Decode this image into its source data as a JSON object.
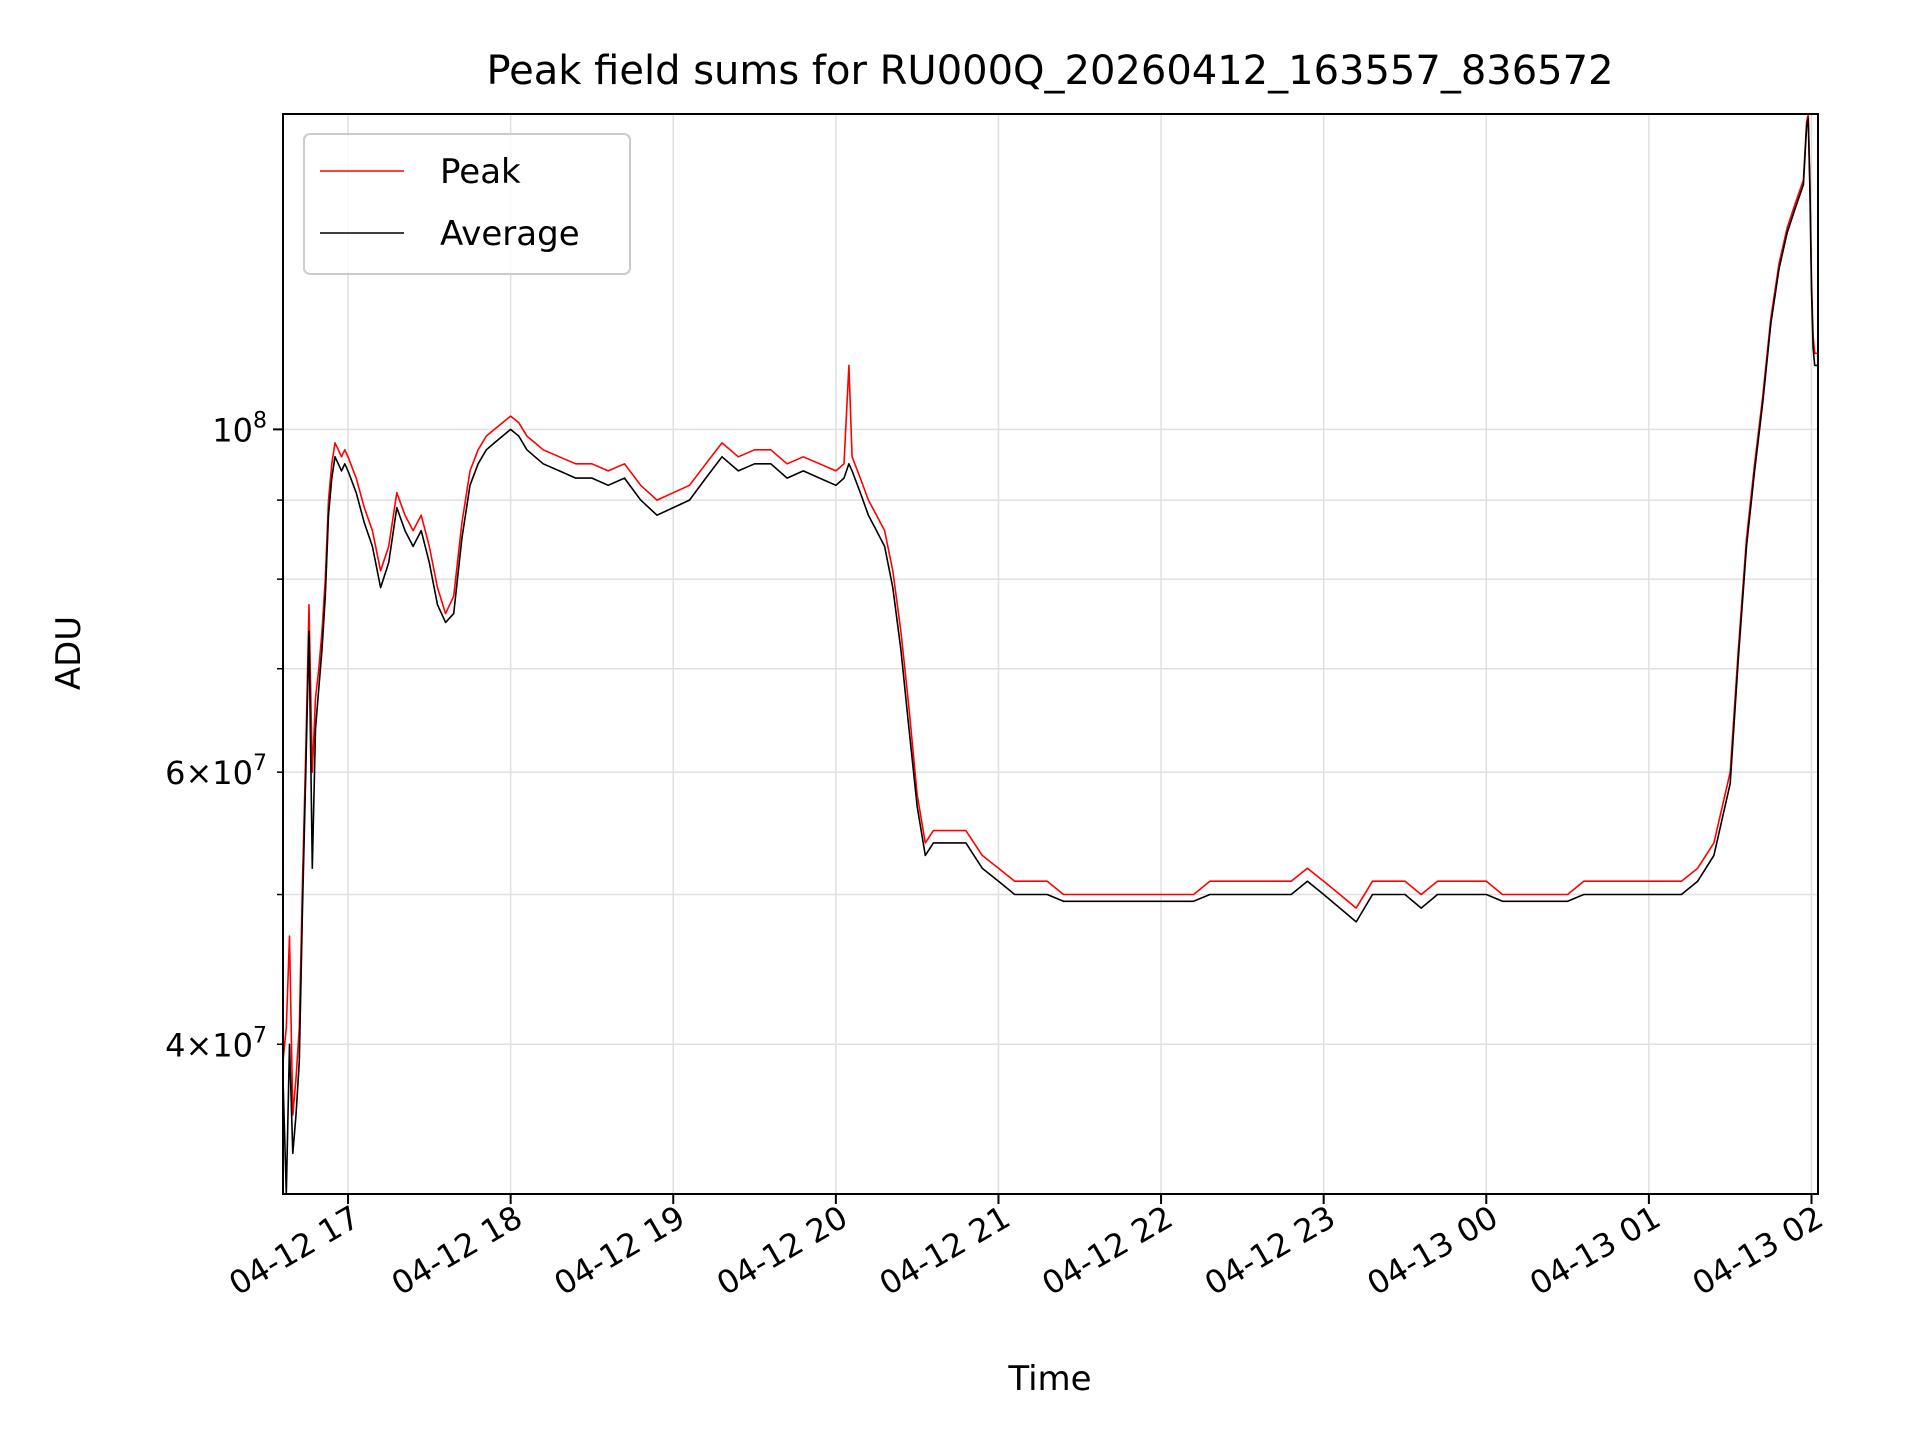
{
  "chart_data": {
    "type": "line",
    "title": "Peak field sums for RU000Q_20260412_163557_836572",
    "xlabel": "Time",
    "ylabel": "ADU",
    "y_scale": "log",
    "x_unit": "hours since 04-12 00:00",
    "xlim": [
      16.6,
      26.04
    ],
    "ylim": [
      32000000.0,
      160000000.0
    ],
    "grid": true,
    "legend_position": "top-left",
    "x_ticks": [
      {
        "value": 17,
        "label": "04-12 17"
      },
      {
        "value": 18,
        "label": "04-12 18"
      },
      {
        "value": 19,
        "label": "04-12 19"
      },
      {
        "value": 20,
        "label": "04-12 20"
      },
      {
        "value": 21,
        "label": "04-12 21"
      },
      {
        "value": 22,
        "label": "04-12 22"
      },
      {
        "value": 23,
        "label": "04-12 23"
      },
      {
        "value": 24,
        "label": "04-13 00"
      },
      {
        "value": 25,
        "label": "04-13 01"
      },
      {
        "value": 26,
        "label": "04-13 02"
      }
    ],
    "y_major_ticks": [
      {
        "value": 100000000.0,
        "base": "10",
        "exp": "8"
      }
    ],
    "y_minor_ticks": [
      {
        "value": 40000000.0,
        "mant": "4",
        "exp": "7",
        "labeled": true
      },
      {
        "value": 50000000.0,
        "labeled": false
      },
      {
        "value": 60000000.0,
        "mant": "6",
        "exp": "7",
        "labeled": true
      },
      {
        "value": 70000000.0,
        "labeled": false
      },
      {
        "value": 80000000.0,
        "labeled": false
      },
      {
        "value": 90000000.0,
        "labeled": false
      },
      {
        "value": 200000000.0,
        "labeled": false
      }
    ],
    "series": [
      {
        "name": "Peak",
        "color": "#ff0000",
        "x": [
          16.6,
          16.62,
          16.64,
          16.66,
          16.68,
          16.7,
          16.72,
          16.74,
          16.76,
          16.78,
          16.8,
          16.82,
          16.84,
          16.86,
          16.88,
          16.9,
          16.92,
          16.94,
          16.96,
          16.98,
          17.0,
          17.05,
          17.1,
          17.15,
          17.2,
          17.25,
          17.3,
          17.35,
          17.4,
          17.45,
          17.5,
          17.55,
          17.6,
          17.65,
          17.7,
          17.75,
          17.8,
          17.85,
          17.9,
          17.95,
          18.0,
          18.05,
          18.1,
          18.15,
          18.2,
          18.3,
          18.4,
          18.5,
          18.6,
          18.7,
          18.8,
          18.9,
          19.0,
          19.1,
          19.2,
          19.3,
          19.4,
          19.5,
          19.6,
          19.7,
          19.8,
          19.9,
          20.0,
          20.05,
          20.08,
          20.1,
          20.15,
          20.2,
          20.25,
          20.3,
          20.35,
          20.4,
          20.45,
          20.5,
          20.55,
          20.6,
          20.7,
          20.8,
          20.9,
          21.0,
          21.1,
          21.2,
          21.3,
          21.4,
          21.5,
          21.6,
          21.7,
          21.8,
          21.9,
          22.0,
          22.1,
          22.2,
          22.3,
          22.4,
          22.5,
          22.6,
          22.7,
          22.8,
          22.9,
          23.0,
          23.1,
          23.2,
          23.3,
          23.4,
          23.5,
          23.6,
          23.7,
          23.8,
          23.9,
          24.0,
          24.1,
          24.2,
          24.3,
          24.4,
          24.5,
          24.6,
          24.7,
          24.8,
          24.9,
          25.0,
          25.1,
          25.2,
          25.3,
          25.4,
          25.5,
          25.55,
          25.6,
          25.65,
          25.7,
          25.75,
          25.8,
          25.85,
          25.9,
          25.95,
          25.97,
          25.98,
          25.99,
          26.0,
          26.01,
          26.02,
          26.04
        ],
        "values": [
          39000000.0,
          41000000.0,
          47000000.0,
          36000000.0,
          38000000.0,
          41000000.0,
          51000000.0,
          62000000.0,
          77000000.0,
          60000000.0,
          67000000.0,
          70000000.0,
          74000000.0,
          80000000.0,
          90000000.0,
          95000000.0,
          98000000.0,
          97000000.0,
          96000000.0,
          97000000.0,
          96000000.0,
          93000000.0,
          89000000.0,
          86000000.0,
          81000000.0,
          84000000.0,
          91000000.0,
          88000000.0,
          86000000.0,
          88000000.0,
          84000000.0,
          79000000.0,
          76000000.0,
          78000000.0,
          87000000.0,
          94000000.0,
          97000000.0,
          99000000.0,
          100000000.0,
          101000000.0,
          102000000.0,
          101000000.0,
          99000000.0,
          98000000.0,
          97000000.0,
          96000000.0,
          95000000.0,
          95000000.0,
          94000000.0,
          95000000.0,
          92000000.0,
          90000000.0,
          91000000.0,
          92000000.0,
          95000000.0,
          98000000.0,
          96000000.0,
          97000000.0,
          97000000.0,
          95000000.0,
          96000000.0,
          95000000.0,
          94000000.0,
          95000000.0,
          110000000.0,
          96000000.0,
          93000000.0,
          90000000.0,
          88000000.0,
          86000000.0,
          81000000.0,
          74000000.0,
          66000000.0,
          58000000.0,
          54000000.0,
          55000000.0,
          55000000.0,
          55000000.0,
          53000000.0,
          52000000.0,
          51000000.0,
          51000000.0,
          51000000.0,
          50000000.0,
          50000000.0,
          50000000.0,
          50000000.0,
          50000000.0,
          50000000.0,
          50000000.0,
          50000000.0,
          50000000.0,
          51000000.0,
          51000000.0,
          51000000.0,
          51000000.0,
          51000000.0,
          51000000.0,
          52000000.0,
          51000000.0,
          50000000.0,
          49000000.0,
          51000000.0,
          51000000.0,
          51000000.0,
          50000000.0,
          51000000.0,
          51000000.0,
          51000000.0,
          51000000.0,
          50000000.0,
          50000000.0,
          50000000.0,
          50000000.0,
          50000000.0,
          51000000.0,
          51000000.0,
          51000000.0,
          51000000.0,
          51000000.0,
          51000000.0,
          51000000.0,
          52000000.0,
          54000000.0,
          60000000.0,
          72000000.0,
          85000000.0,
          95000000.0,
          105000000.0,
          118000000.0,
          128000000.0,
          135000000.0,
          140000000.0,
          145000000.0,
          158000000.0,
          160000000.0,
          145000000.0,
          125000000.0,
          115000000.0,
          112000000.0,
          112000000.0
        ]
      },
      {
        "name": "Average",
        "color": "#000000",
        "x": [
          16.6,
          16.62,
          16.64,
          16.66,
          16.68,
          16.7,
          16.72,
          16.74,
          16.76,
          16.78,
          16.8,
          16.82,
          16.84,
          16.86,
          16.88,
          16.9,
          16.92,
          16.94,
          16.96,
          16.98,
          17.0,
          17.05,
          17.1,
          17.15,
          17.2,
          17.25,
          17.3,
          17.35,
          17.4,
          17.45,
          17.5,
          17.55,
          17.6,
          17.65,
          17.7,
          17.75,
          17.8,
          17.85,
          17.9,
          17.95,
          18.0,
          18.05,
          18.1,
          18.15,
          18.2,
          18.3,
          18.4,
          18.5,
          18.6,
          18.7,
          18.8,
          18.9,
          19.0,
          19.1,
          19.2,
          19.3,
          19.4,
          19.5,
          19.6,
          19.7,
          19.8,
          19.9,
          20.0,
          20.05,
          20.08,
          20.1,
          20.15,
          20.2,
          20.25,
          20.3,
          20.35,
          20.4,
          20.45,
          20.5,
          20.55,
          20.6,
          20.7,
          20.8,
          20.9,
          21.0,
          21.1,
          21.2,
          21.3,
          21.4,
          21.5,
          21.6,
          21.7,
          21.8,
          21.9,
          22.0,
          22.1,
          22.2,
          22.3,
          22.4,
          22.5,
          22.6,
          22.7,
          22.8,
          22.9,
          23.0,
          23.1,
          23.2,
          23.3,
          23.4,
          23.5,
          23.6,
          23.7,
          23.8,
          23.9,
          24.0,
          24.1,
          24.2,
          24.3,
          24.4,
          24.5,
          24.6,
          24.7,
          24.8,
          24.9,
          25.0,
          25.1,
          25.2,
          25.3,
          25.4,
          25.5,
          25.55,
          25.6,
          25.65,
          25.7,
          25.75,
          25.8,
          25.85,
          25.9,
          25.95,
          25.97,
          25.98,
          25.99,
          26.0,
          26.01,
          26.02,
          26.04
        ],
        "values": [
          38000000.0,
          32000000.0,
          40000000.0,
          34000000.0,
          36000000.0,
          39000000.0,
          49000000.0,
          60000000.0,
          74000000.0,
          52000000.0,
          64000000.0,
          68000000.0,
          72000000.0,
          78000000.0,
          88000000.0,
          93000000.0,
          96000000.0,
          95000000.0,
          94000000.0,
          95000000.0,
          94000000.0,
          91000000.0,
          87000000.0,
          84000000.0,
          79000000.0,
          82000000.0,
          89000000.0,
          86000000.0,
          84000000.0,
          86000000.0,
          82000000.0,
          77000000.0,
          75000000.0,
          76000000.0,
          85000000.0,
          92000000.0,
          95000000.0,
          97000000.0,
          98000000.0,
          99000000.0,
          100000000.0,
          99000000.0,
          97000000.0,
          96000000.0,
          95000000.0,
          94000000.0,
          93000000.0,
          93000000.0,
          92000000.0,
          93000000.0,
          90000000.0,
          88000000.0,
          89000000.0,
          90000000.0,
          93000000.0,
          96000000.0,
          94000000.0,
          95000000.0,
          95000000.0,
          93000000.0,
          94000000.0,
          93000000.0,
          92000000.0,
          93000000.0,
          95000000.0,
          94000000.0,
          91000000.0,
          88000000.0,
          86000000.0,
          84000000.0,
          79000000.0,
          72000000.0,
          64000000.0,
          57000000.0,
          53000000.0,
          54000000.0,
          54000000.0,
          54000000.0,
          52000000.0,
          51000000.0,
          50000000.0,
          50000000.0,
          50000000.0,
          49500000.0,
          49500000.0,
          49500000.0,
          49500000.0,
          49500000.0,
          49500000.0,
          49500000.0,
          49500000.0,
          49500000.0,
          50000000.0,
          50000000.0,
          50000000.0,
          50000000.0,
          50000000.0,
          50000000.0,
          51000000.0,
          50000000.0,
          49000000.0,
          48000000.0,
          50000000.0,
          50000000.0,
          50000000.0,
          49000000.0,
          50000000.0,
          50000000.0,
          50000000.0,
          50000000.0,
          49500000.0,
          49500000.0,
          49500000.0,
          49500000.0,
          49500000.0,
          50000000.0,
          50000000.0,
          50000000.0,
          50000000.0,
          50000000.0,
          50000000.0,
          50000000.0,
          51000000.0,
          53000000.0,
          59000000.0,
          71000000.0,
          84000000.0,
          94000000.0,
          104000000.0,
          117000000.0,
          127000000.0,
          134000000.0,
          139000000.0,
          144000000.0,
          157000000.0,
          159000000.0,
          143000000.0,
          123000000.0,
          113000000.0,
          110000000.0,
          110000000.0
        ]
      }
    ]
  }
}
